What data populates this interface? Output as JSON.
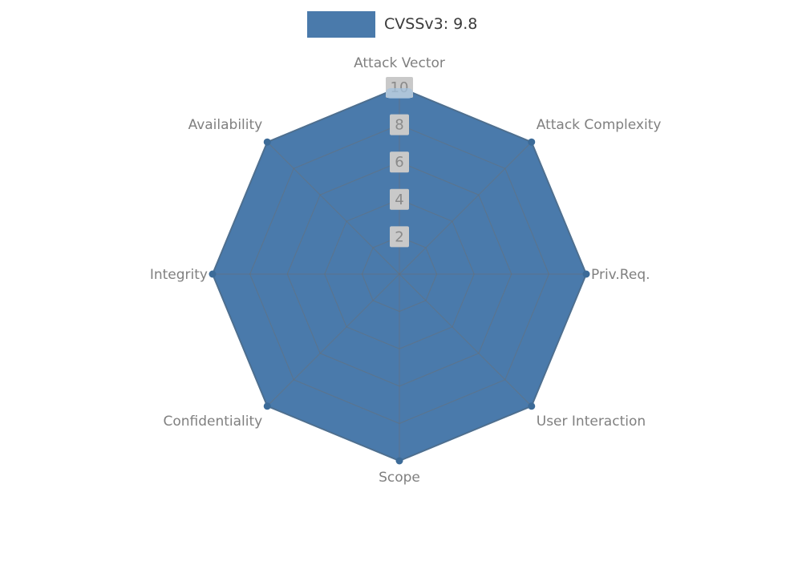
{
  "legend": {
    "label": "CVSSv3: 9.8",
    "swatch_color": "#4a7aab"
  },
  "chart_data": {
    "type": "radar",
    "title": "",
    "categories": [
      "Attack Vector",
      "Attack Complexity",
      "Priv.Req.",
      "User Interaction",
      "Scope",
      "Confidentiality",
      "Integrity",
      "Availability"
    ],
    "series": [
      {
        "name": "CVSSv3: 9.8",
        "values": [
          10,
          10,
          10,
          10,
          10,
          10,
          10,
          10
        ]
      }
    ],
    "ticks": [
      2,
      4,
      6,
      8,
      10
    ],
    "axis_max": 10,
    "grid": true,
    "legend_position": "top",
    "fill_color": "#4a7aab",
    "stroke_color": "#42709d",
    "marker_color": "#3c6b98",
    "highlight_color": "#a3c2de",
    "grid_color": "#6e6e6e",
    "label_color": "#808080",
    "tick_bg": "#c9c9c9",
    "tick_color": "#8a8a8a"
  }
}
